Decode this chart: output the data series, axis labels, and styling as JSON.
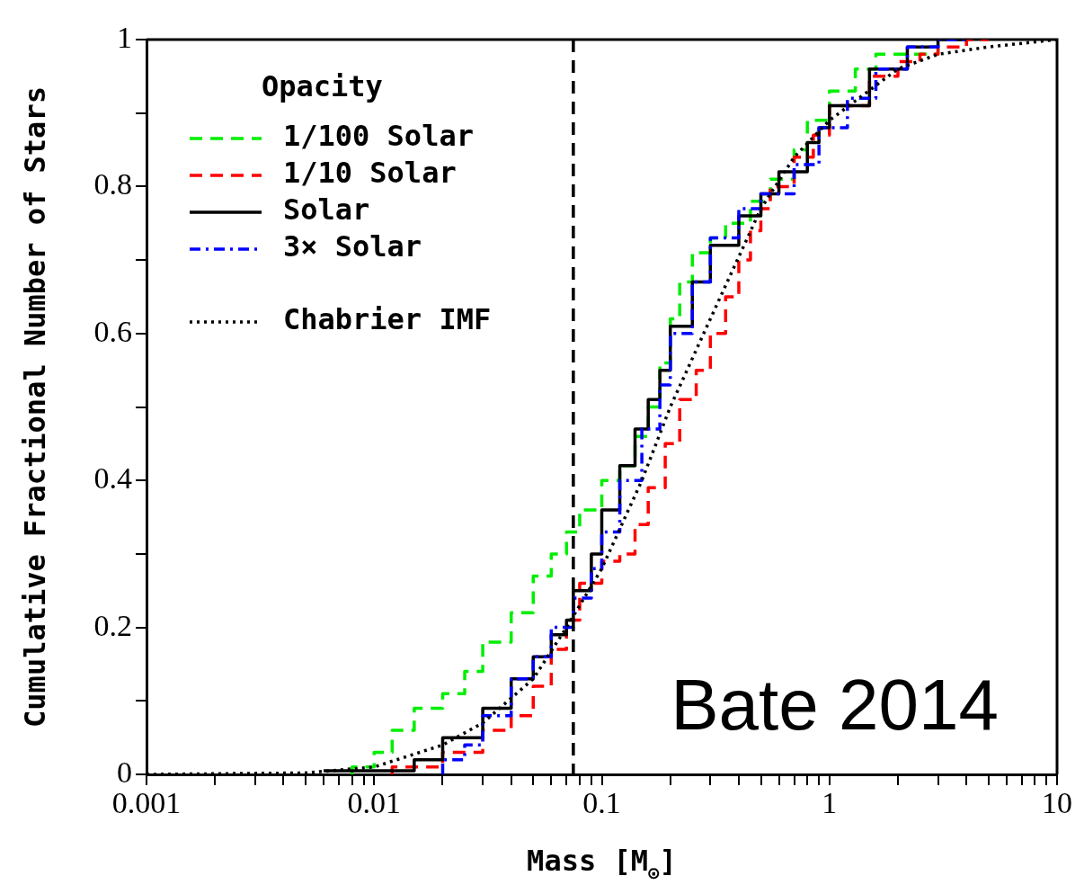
{
  "chart_data": {
    "type": "step",
    "xlabel": "Mass [M$_{⊙}$]",
    "ylabel": "Cumulative Fractional Number of Stars",
    "legend_title": "Opacity",
    "legend": "top left",
    "log": "x",
    "grid": false,
    "xlim": [
      0.001,
      10
    ],
    "ylim": [
      0,
      1
    ],
    "xticks": [
      0.001,
      {
        "value": 0.002,
        "label": null
      },
      {
        "value": 0.003,
        "label": null
      },
      {
        "value": 0.004,
        "label": null
      },
      {
        "value": 0.005,
        "label": null
      },
      {
        "value": 0.006,
        "label": null
      },
      {
        "value": 0.007,
        "label": null
      },
      {
        "value": 0.008,
        "label": null
      },
      {
        "value": 0.009,
        "label": null
      },
      0.01,
      {
        "value": 0.02,
        "label": null
      },
      {
        "value": 0.03,
        "label": null
      },
      {
        "value": 0.04,
        "label": null
      },
      {
        "value": 0.05,
        "label": null
      },
      {
        "value": 0.06,
        "label": null
      },
      {
        "value": 0.07,
        "label": null
      },
      {
        "value": 0.08,
        "label": null
      },
      {
        "value": 0.09,
        "label": null
      },
      0.1,
      {
        "value": 0.2,
        "label": null
      },
      {
        "value": 0.3,
        "label": null
      },
      {
        "value": 0.4,
        "label": null
      },
      {
        "value": 0.5,
        "label": null
      },
      {
        "value": 0.6,
        "label": null
      },
      {
        "value": 0.7,
        "label": null
      },
      {
        "value": 0.8,
        "label": null
      },
      {
        "value": 0.9,
        "label": null
      },
      1,
      {
        "value": 2,
        "label": null
      },
      {
        "value": 3,
        "label": null
      },
      {
        "value": 4,
        "label": null
      },
      {
        "value": 5,
        "label": null
      },
      {
        "value": 6,
        "label": null
      },
      {
        "value": 7,
        "label": null
      },
      {
        "value": 8,
        "label": null
      },
      {
        "value": 9,
        "label": null
      },
      10
    ],
    "yticks": [
      0,
      {
        "value": 0.1,
        "label": null
      },
      0.2,
      {
        "value": 0.3,
        "label": null
      },
      0.4,
      {
        "value": 0.5,
        "label": null
      },
      0.6,
      {
        "value": 0.7,
        "label": null
      },
      0.8,
      {
        "value": 0.9,
        "label": null
      },
      1
    ],
    "ref_lines": [
      {
        "axis": "x",
        "value": 0.075,
        "color": "#000000",
        "line_style": "dashed"
      }
    ],
    "annotations": [
      "Bate 2014"
    ],
    "series": [
      {
        "name": "1/100 Solar",
        "type": "step",
        "color": "#00ee00",
        "line_style": "dashed",
        "x": [
          0.008,
          0.01,
          0.012,
          0.015,
          0.02,
          0.025,
          0.03,
          0.04,
          0.05,
          0.06,
          0.07,
          0.08,
          0.1,
          0.12,
          0.14,
          0.16,
          0.18,
          0.2,
          0.22,
          0.25,
          0.3,
          0.35,
          0.45,
          0.55,
          0.7,
          0.8,
          1.0,
          1.3,
          1.6,
          2,
          3,
          3.2
        ],
        "values": [
          0,
          0.01,
          0.03,
          0.06,
          0.09,
          0.11,
          0.14,
          0.18,
          0.22,
          0.27,
          0.3,
          0.33,
          0.36,
          0.4,
          0.42,
          0.46,
          0.5,
          0.56,
          0.62,
          0.67,
          0.71,
          0.73,
          0.75,
          0.78,
          0.81,
          0.85,
          0.89,
          0.93,
          0.96,
          0.98,
          0.98,
          1.0
        ]
      },
      {
        "name": "1/10 Solar",
        "type": "step",
        "color": "#ff0000",
        "line_style": "dashed",
        "x": [
          0.012,
          0.02,
          0.03,
          0.04,
          0.05,
          0.06,
          0.07,
          0.08,
          0.1,
          0.12,
          0.14,
          0.16,
          0.19,
          0.22,
          0.26,
          0.3,
          0.35,
          0.4,
          0.45,
          0.5,
          0.55,
          0.7,
          0.85,
          1.0,
          1.5,
          2,
          2.5,
          3,
          4,
          5
        ],
        "values": [
          0,
          0.01,
          0.03,
          0.06,
          0.08,
          0.12,
          0.17,
          0.21,
          0.26,
          0.29,
          0.3,
          0.34,
          0.39,
          0.45,
          0.51,
          0.55,
          0.6,
          0.65,
          0.7,
          0.74,
          0.77,
          0.8,
          0.84,
          0.87,
          0.91,
          0.95,
          0.97,
          0.98,
          0.99,
          1.0
        ]
      },
      {
        "name": "Solar",
        "type": "step",
        "color": "#000000",
        "line_style": "solid",
        "x": [
          0.006,
          0.015,
          0.02,
          0.03,
          0.04,
          0.05,
          0.06,
          0.07,
          0.075,
          0.09,
          0.1,
          0.12,
          0.14,
          0.16,
          0.18,
          0.2,
          0.25,
          0.3,
          0.4,
          0.5,
          0.6,
          0.8,
          0.9,
          1.0,
          1.5,
          2.2,
          3.0,
          4
        ],
        "values": [
          0.005,
          0.005,
          0.02,
          0.05,
          0.09,
          0.13,
          0.16,
          0.19,
          0.21,
          0.25,
          0.3,
          0.36,
          0.42,
          0.47,
          0.51,
          0.55,
          0.61,
          0.67,
          0.72,
          0.76,
          0.79,
          0.82,
          0.86,
          0.88,
          0.91,
          0.96,
          0.99,
          1.0
        ]
      },
      {
        "name": "3× Solar",
        "type": "step",
        "color": "#0000ff",
        "line_style": "dashdot",
        "x": [
          0.02,
          0.025,
          0.03,
          0.04,
          0.05,
          0.06,
          0.075,
          0.09,
          0.1,
          0.12,
          0.15,
          0.18,
          0.2,
          0.25,
          0.3,
          0.4,
          0.5,
          0.7,
          0.9,
          1.2,
          1.6,
          2.2,
          3,
          4
        ],
        "values": [
          0,
          0.02,
          0.04,
          0.08,
          0.13,
          0.16,
          0.2,
          0.24,
          0.28,
          0.33,
          0.4,
          0.47,
          0.53,
          0.6,
          0.67,
          0.73,
          0.77,
          0.79,
          0.83,
          0.88,
          0.92,
          0.96,
          0.99,
          1.0
        ]
      },
      {
        "name": "Chabrier IMF",
        "type": "line",
        "color": "#000000",
        "line_style": "dotted",
        "x": [
          0.001,
          0.005,
          0.01,
          0.02,
          0.03,
          0.05,
          0.07,
          0.1,
          0.15,
          0.2,
          0.3,
          0.5,
          0.7,
          1,
          2,
          3,
          5,
          10
        ],
        "values": [
          0,
          0.002,
          0.01,
          0.04,
          0.07,
          0.13,
          0.2,
          0.28,
          0.4,
          0.5,
          0.62,
          0.77,
          0.84,
          0.89,
          0.96,
          0.98,
          0.99,
          1.0
        ]
      }
    ]
  }
}
